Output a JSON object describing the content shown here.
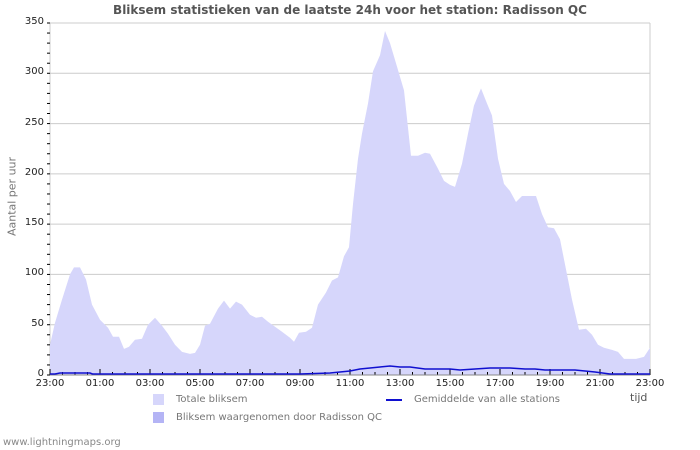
{
  "title": "Bliksem statistieken van de laatste 24h voor het station: Radisson QC",
  "ylabel": "Aantal per uur",
  "xunit": "tijd",
  "footer": "www.lightningmaps.org",
  "colors": {
    "total_fill": "#d6d6fb",
    "station_fill": "#b4b4f5",
    "avg_line": "#1010d0",
    "grid": "#cccccc"
  },
  "legend": {
    "total": "Totale bliksem",
    "station": "Bliksem waargenomen door Radisson QC",
    "average": "Gemiddelde van alle stations"
  },
  "chart_data": {
    "type": "area",
    "title": "Bliksem statistieken van de laatste 24h voor het station: Radisson QC",
    "xlabel": "tijd",
    "ylabel": "Aantal per uur",
    "ylim": [
      0,
      350
    ],
    "yticks": [
      0,
      50,
      100,
      150,
      200,
      250,
      300,
      350
    ],
    "xticks": [
      "23:00",
      "01:00",
      "03:00",
      "05:00",
      "07:00",
      "09:00",
      "11:00",
      "13:00",
      "15:00",
      "17:00",
      "19:00",
      "21:00",
      "23:00"
    ],
    "x_hours_from_start": [
      0,
      0.2,
      0.48,
      0.8,
      0.96,
      1.2,
      1.44,
      1.68,
      2.0,
      2.32,
      2.52,
      2.76,
      2.96,
      3.16,
      3.4,
      3.68,
      3.92,
      4.2,
      4.48,
      4.72,
      5.0,
      5.28,
      5.6,
      5.8,
      6.0,
      6.2,
      6.4,
      6.72,
      6.96,
      7.2,
      7.44,
      7.68,
      8.0,
      8.24,
      8.48,
      8.72,
      9.0,
      9.28,
      9.6,
      9.76,
      9.96,
      10.24,
      10.48,
      10.72,
      11.04,
      11.28,
      11.52,
      11.76,
      11.96,
      12.12,
      12.32,
      12.48,
      12.72,
      12.92,
      13.2,
      13.4,
      13.6,
      13.84,
      14.16,
      14.44,
      14.72,
      15.0,
      15.2,
      15.52,
      15.76,
      16.0,
      16.2,
      16.48,
      16.72,
      16.96,
      17.24,
      17.48,
      17.68,
      17.92,
      18.16,
      18.4,
      18.64,
      18.88,
      19.12,
      19.44,
      19.68,
      19.92,
      20.16,
      20.4,
      20.64,
      20.88,
      21.16,
      21.44,
      21.68,
      21.92,
      22.16,
      22.48,
      22.72,
      22.96,
      23.44,
      23.76,
      24.0
    ],
    "series": [
      {
        "name": "Totale bliksem",
        "values": [
          30,
          52,
          75,
          100,
          107,
          107,
          95,
          70,
          55,
          47,
          38,
          38,
          26,
          28,
          35,
          36,
          50,
          57,
          49,
          41,
          30,
          23,
          21,
          22,
          30,
          49,
          51,
          66,
          74,
          66,
          73,
          70,
          60,
          57,
          58,
          53,
          48,
          43,
          37,
          33,
          42,
          43,
          47,
          70,
          82,
          94,
          97,
          118,
          127,
          170,
          215,
          240,
          270,
          302,
          318,
          342,
          330,
          310,
          283,
          218,
          218,
          221,
          220,
          205,
          193,
          189,
          187,
          210,
          240,
          268,
          285,
          270,
          258,
          215,
          190,
          183,
          172,
          178,
          178,
          178,
          160,
          147,
          146,
          135,
          105,
          75,
          45,
          46,
          40,
          30,
          27,
          25,
          23,
          16,
          16,
          18,
          27
        ]
      },
      {
        "name": "Bliksem waargenomen door Radisson QC",
        "values": []
      },
      {
        "name": "Gemiddelde van alle stations",
        "x_hours_from_start": [
          0,
          0.2,
          0.4,
          1.6,
          1.7,
          2.0,
          10.0,
          11.2,
          11.6,
          12.0,
          12.4,
          12.8,
          13.2,
          13.6,
          14.0,
          14.4,
          15.0,
          15.6,
          16.0,
          16.4,
          17.0,
          17.6,
          18.0,
          18.4,
          19.0,
          19.4,
          19.8,
          20.2,
          20.6,
          21.0,
          21.4,
          21.8,
          22.4,
          23.0,
          23.9,
          24.0
        ],
        "values": [
          0,
          0,
          1,
          1,
          0,
          0,
          0,
          1,
          2,
          3,
          5,
          6,
          7,
          8,
          7,
          7,
          5,
          5,
          5,
          4,
          5,
          6,
          6,
          6,
          5,
          5,
          4,
          4,
          4,
          4,
          3,
          2,
          0,
          0,
          0,
          0
        ]
      }
    ],
    "grid": true,
    "legend_position": "bottom"
  }
}
